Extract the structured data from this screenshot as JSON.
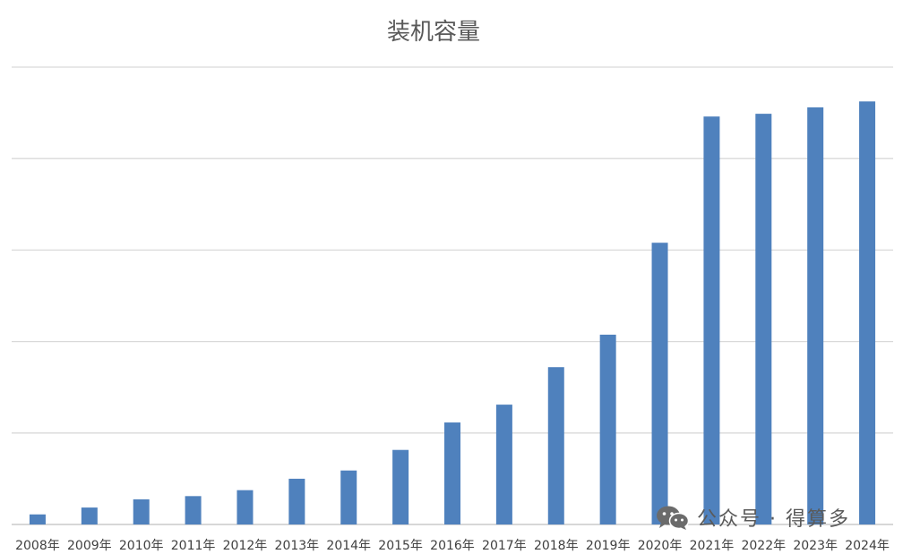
{
  "chart_data": {
    "type": "bar",
    "title": "装机容量",
    "xlabel": "",
    "ylabel": "",
    "categories": [
      "2008年",
      "2009年",
      "2010年",
      "2011年",
      "2012年",
      "2013年",
      "2014年",
      "2015年",
      "2016年",
      "2017年",
      "2018年",
      "2019年",
      "2020年",
      "2021年",
      "2022年",
      "2023年",
      "2024年"
    ],
    "values": [
      0.22,
      0.37,
      0.55,
      0.62,
      0.75,
      1.0,
      1.18,
      1.63,
      2.23,
      2.62,
      3.44,
      4.15,
      6.16,
      8.92,
      8.98,
      9.12,
      9.25
    ],
    "ylim": [
      0,
      10
    ],
    "ytick_count": 5,
    "grid": true,
    "legend": "none",
    "bar_color": "#4f81bd"
  },
  "watermark": {
    "icon": "wechat-icon",
    "text": "公众号 · 得算多"
  }
}
